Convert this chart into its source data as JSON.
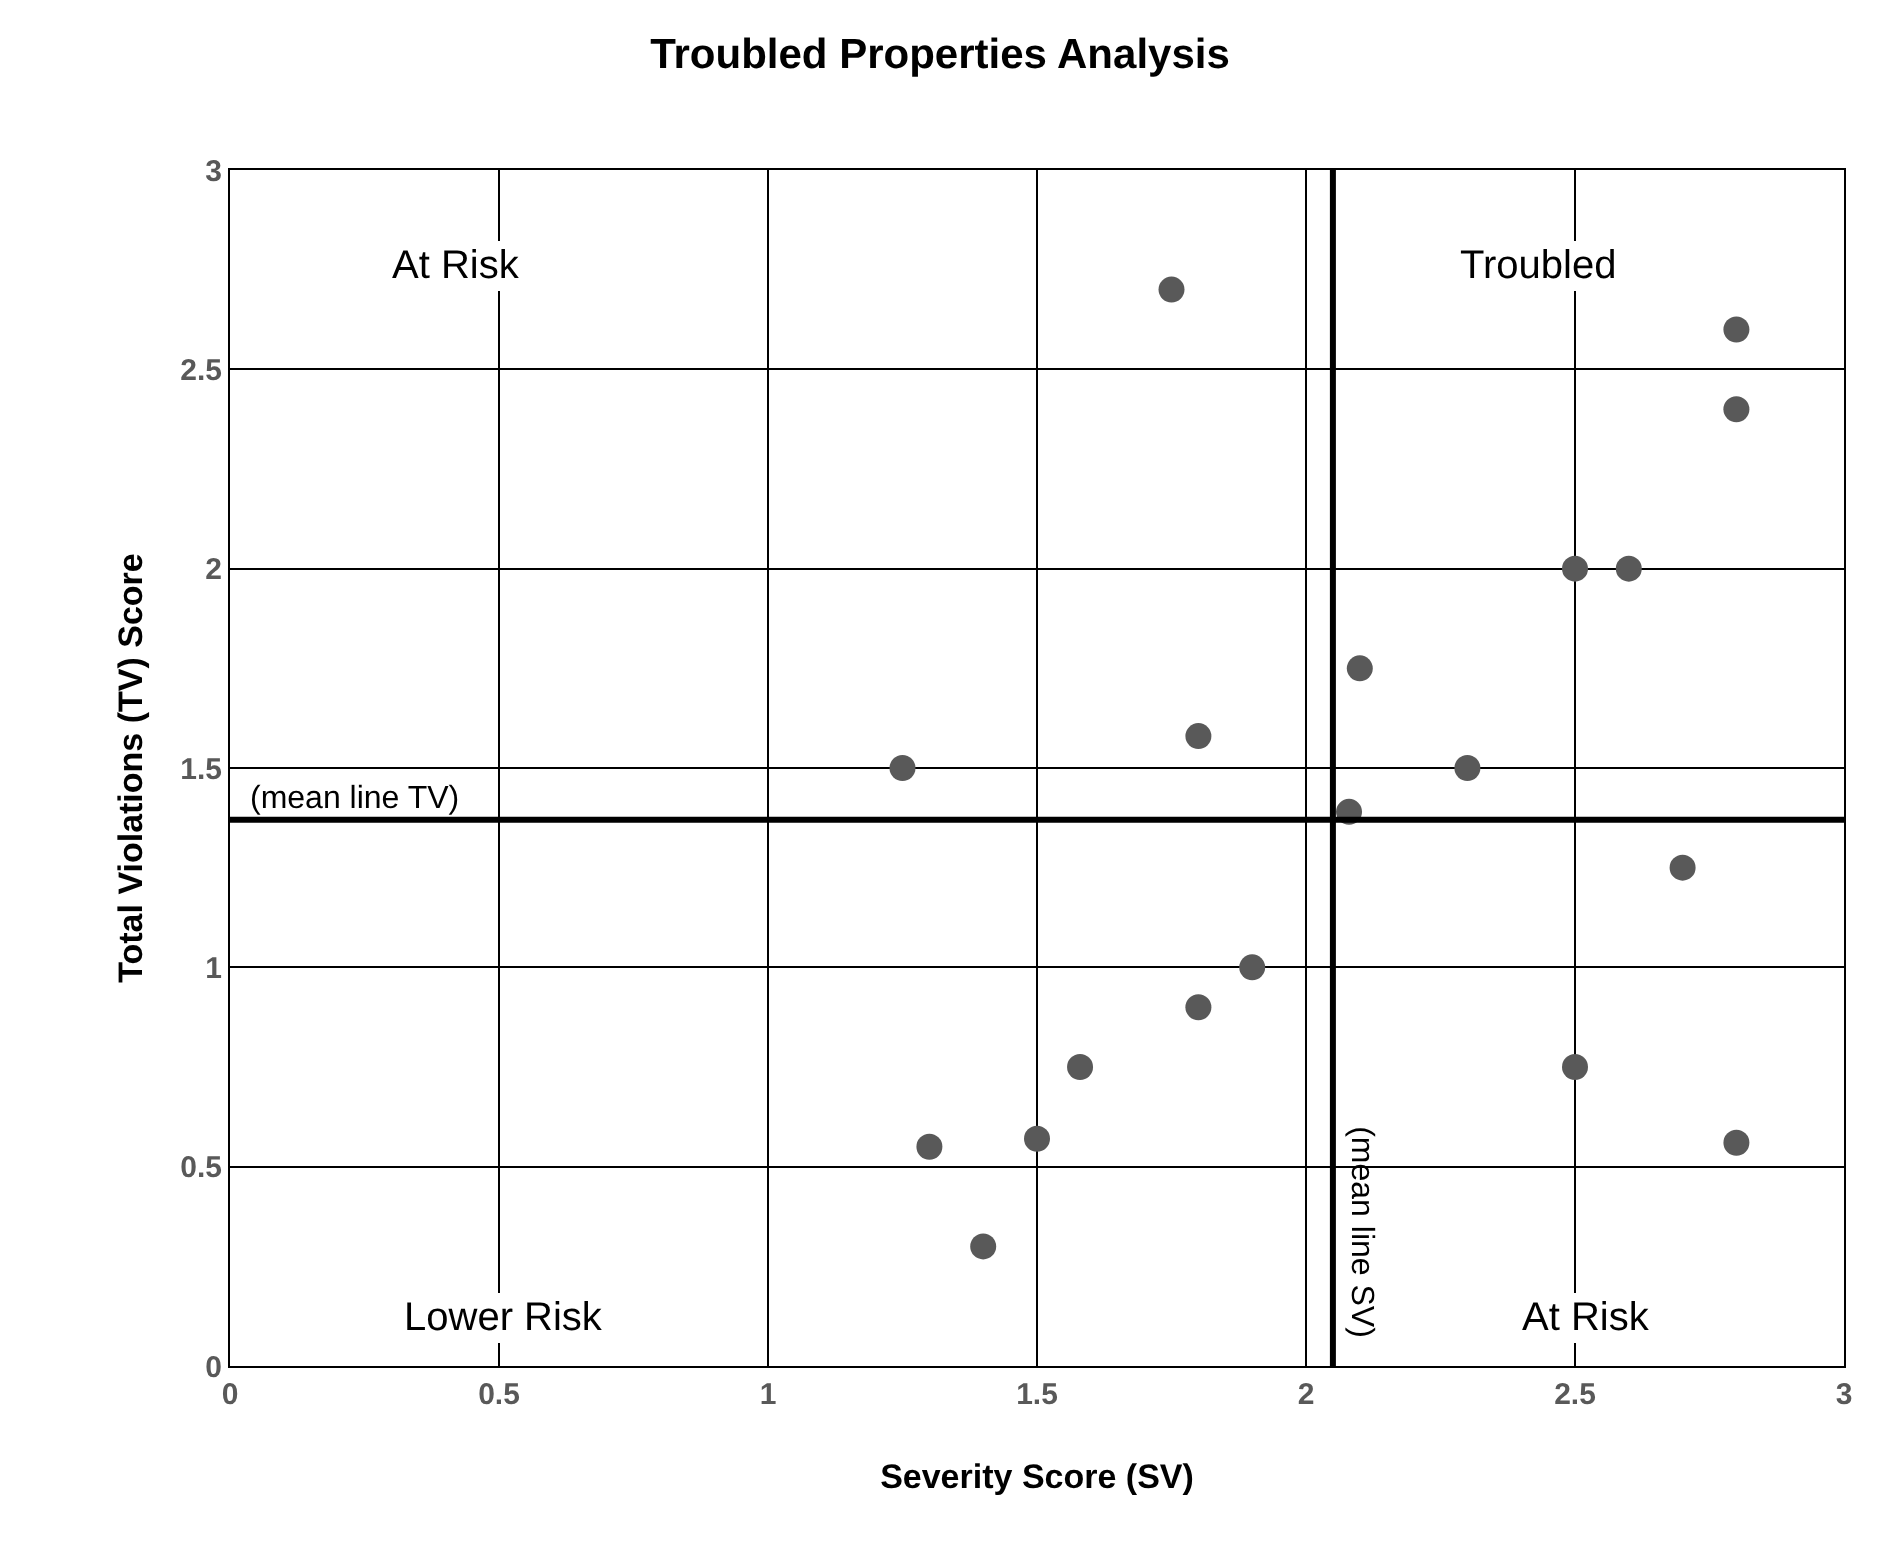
{
  "chart_data": {
    "type": "scatter",
    "title": "Troubled Properties Analysis",
    "xlabel": "Severity Score (SV)",
    "ylabel": "Total Violations (TV) Score",
    "x": [
      1.75,
      2.8,
      2.8,
      2.5,
      2.6,
      2.1,
      1.8,
      1.25,
      2.3,
      2.08,
      2.7,
      1.9,
      1.8,
      1.58,
      2.5,
      1.5,
      1.3,
      2.8,
      1.4
    ],
    "series": [
      {
        "color": "#595959",
        "values": [
          2.7,
          2.6,
          2.4,
          2.0,
          2.0,
          1.75,
          1.58,
          1.5,
          1.5,
          1.39,
          1.25,
          1.0,
          0.9,
          0.75,
          0.75,
          0.57,
          0.55,
          0.56,
          0.3
        ]
      }
    ],
    "xlim": [
      0,
      3
    ],
    "ylim": [
      0,
      3
    ],
    "xticks": [
      0,
      0.5,
      1,
      1.5,
      2,
      2.5,
      3
    ],
    "yticks": [
      0,
      0.5,
      1,
      1.5,
      2,
      2.5,
      3
    ],
    "grid": true,
    "marker": "circle",
    "ref_lines": [
      {
        "axis": "y",
        "value": 1.37,
        "label": "(mean line TV)",
        "color": "#000000"
      },
      {
        "axis": "x",
        "value": 2.05,
        "label": "(mean line SV)",
        "color": "#000000"
      }
    ],
    "annotations": [
      "At Risk",
      "Troubled",
      "Lower Risk",
      "At Risk"
    ]
  }
}
